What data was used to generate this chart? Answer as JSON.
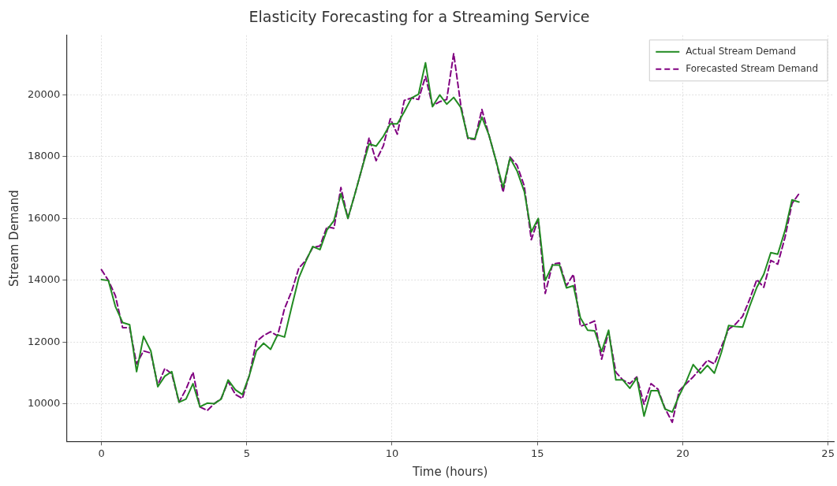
{
  "chart_data": {
    "type": "line",
    "title": "Elasticity Forecasting for a Streaming Service",
    "xlabel": "Time (hours)",
    "ylabel": "Stream Demand",
    "x": [
      0,
      0.24,
      0.48,
      0.73,
      0.97,
      1.21,
      1.45,
      1.7,
      1.94,
      2.18,
      2.42,
      2.67,
      2.91,
      3.15,
      3.39,
      3.64,
      3.88,
      4.12,
      4.36,
      4.61,
      4.85,
      5.09,
      5.33,
      5.58,
      5.82,
      6.06,
      6.3,
      6.55,
      6.79,
      7.03,
      7.27,
      7.52,
      7.76,
      8.0,
      8.24,
      8.48,
      8.73,
      8.97,
      9.21,
      9.45,
      9.7,
      9.94,
      10.18,
      10.42,
      10.67,
      10.91,
      11.15,
      11.39,
      11.64,
      11.88,
      12.12,
      12.36,
      12.61,
      12.85,
      13.09,
      13.33,
      13.58,
      13.82,
      14.06,
      14.3,
      14.55,
      14.79,
      15.03,
      15.27,
      15.52,
      15.76,
      16.0,
      16.24,
      16.48,
      16.73,
      16.97,
      17.21,
      17.45,
      17.7,
      17.94,
      18.18,
      18.42,
      18.67,
      18.91,
      19.15,
      19.39,
      19.64,
      19.88,
      20.12,
      20.36,
      20.61,
      20.85,
      21.09,
      21.33,
      21.58,
      21.82,
      22.06,
      22.3,
      22.55,
      22.79,
      23.03,
      23.27,
      23.52,
      23.76,
      24.0
    ],
    "series": [
      {
        "name": "Actual Stream Demand",
        "color": "#228b22",
        "line_style": "solid",
        "values": [
          14020,
          13990,
          13150,
          12630,
          12560,
          11040,
          12180,
          11710,
          10550,
          10890,
          11040,
          10050,
          10150,
          10650,
          9900,
          10020,
          10000,
          10150,
          10770,
          10450,
          10300,
          10920,
          11710,
          11960,
          11760,
          12230,
          12160,
          13150,
          14070,
          14610,
          15090,
          14990,
          15630,
          15930,
          16800,
          16000,
          16820,
          17640,
          18410,
          18340,
          18660,
          19060,
          19060,
          19450,
          19900,
          20020,
          21040,
          19620,
          20000,
          19700,
          19920,
          19600,
          18610,
          18580,
          19280,
          18710,
          17860,
          17000,
          17960,
          17540,
          16870,
          15560,
          16000,
          13990,
          14490,
          14490,
          13750,
          13820,
          12780,
          12380,
          12360,
          11690,
          12380,
          10770,
          10770,
          10500,
          10840,
          9600,
          10420,
          10420,
          9830,
          9730,
          10270,
          10720,
          11270,
          10990,
          11240,
          10990,
          11660,
          12530,
          12500,
          12480,
          13150,
          13770,
          14190,
          14890,
          14840,
          15610,
          16600,
          16530
        ]
      },
      {
        "name": "Forecasted Stream Demand",
        "color": "#800080",
        "line_style": "dashed",
        "values": [
          14340,
          13990,
          13500,
          12460,
          12460,
          11290,
          11710,
          11640,
          10600,
          11140,
          10970,
          10050,
          10470,
          11020,
          9900,
          9780,
          10000,
          10170,
          10720,
          10300,
          10170,
          10920,
          12010,
          12210,
          12330,
          12200,
          13080,
          13650,
          14390,
          14640,
          15060,
          15110,
          15730,
          15680,
          17000,
          16000,
          16820,
          17640,
          18610,
          17870,
          18350,
          19230,
          18730,
          19820,
          19900,
          19850,
          20600,
          19650,
          19780,
          19850,
          21340,
          19700,
          18580,
          18560,
          19530,
          18710,
          17860,
          16850,
          17990,
          17720,
          17050,
          15310,
          15980,
          13570,
          14520,
          14560,
          13820,
          14190,
          12510,
          12580,
          12680,
          11440,
          12330,
          11020,
          10770,
          10650,
          10870,
          9980,
          10650,
          10470,
          9850,
          9400,
          10420,
          10650,
          10870,
          11140,
          11410,
          11290,
          11840,
          12410,
          12580,
          12830,
          13370,
          14020,
          13770,
          14640,
          14520,
          15390,
          16480,
          16800
        ]
      }
    ],
    "xlim": [
      -1.2,
      25.2
    ],
    "ylim": [
      8780,
      21930
    ],
    "xticks": [
      0,
      5,
      10,
      15,
      20,
      25
    ],
    "yticks": [
      10000,
      12000,
      14000,
      16000,
      18000,
      20000
    ],
    "grid": true,
    "legend": "top right",
    "marker": "none"
  }
}
